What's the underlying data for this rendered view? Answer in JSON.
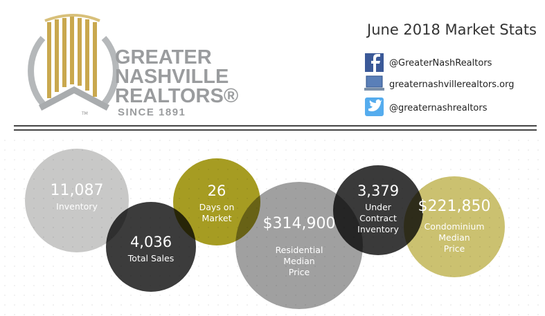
{
  "header": {
    "title": "June 2018 Market Stats"
  },
  "logo": {
    "lines": [
      "GREATER",
      "NASHVILLE",
      "REALTORS®"
    ],
    "since": "SINCE 1891",
    "tm": "TM"
  },
  "social": [
    {
      "kind": "facebook",
      "text": "@GreaterNashRealtors"
    },
    {
      "kind": "web",
      "text": "greaternashvillerealtors.org"
    },
    {
      "kind": "twitter",
      "text": "@greaternashrealtors"
    }
  ],
  "stats": [
    {
      "value": "11,087",
      "label": [
        "Inventory"
      ]
    },
    {
      "value": "4,036",
      "label": [
        "Total Sales"
      ]
    },
    {
      "value": "26",
      "label": [
        "Days on",
        "Market"
      ]
    },
    {
      "value": "$314,900",
      "label": [
        "Residential",
        "Median",
        "Price"
      ]
    },
    {
      "value": "3,379",
      "label": [
        "Under",
        "Contract",
        "Inventory"
      ]
    },
    {
      "value": "$221,850",
      "label": [
        "Condominium",
        "Median",
        "Price"
      ]
    }
  ]
}
